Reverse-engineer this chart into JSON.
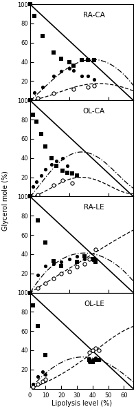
{
  "panels": [
    {
      "title": "RA-CA",
      "TAG_pts_x": [
        0,
        3,
        8,
        15,
        20,
        25,
        28,
        33,
        37,
        41
      ],
      "TAG_pts_y": [
        100,
        88,
        67,
        50,
        43,
        40,
        36,
        42,
        42,
        42
      ],
      "DAG_pts_x": [
        3,
        8,
        15,
        20,
        25,
        28,
        33,
        37,
        41
      ],
      "DAG_pts_y": [
        8,
        14,
        25,
        30,
        33,
        31,
        25,
        25,
        22
      ],
      "MAG_pts_x": [
        0,
        5,
        15,
        28,
        37,
        41
      ],
      "MAG_pts_y": [
        0,
        2,
        7,
        12,
        14,
        15
      ],
      "DAG_curve_x": [
        0,
        5,
        10,
        20,
        30,
        35,
        40,
        50,
        60,
        66
      ],
      "DAG_curve_y": [
        0,
        5,
        15,
        30,
        38,
        42,
        42,
        38,
        28,
        15
      ],
      "MAG_curve_x": [
        0,
        5,
        15,
        25,
        35,
        45,
        55,
        66
      ],
      "MAG_curve_y": [
        0,
        2,
        6,
        12,
        16,
        18,
        15,
        10
      ]
    },
    {
      "title": "OL-CA",
      "TAG_pts_x": [
        0,
        2,
        4,
        7,
        10,
        14,
        17,
        21,
        24,
        27,
        30
      ],
      "TAG_pts_y": [
        100,
        85,
        78,
        65,
        52,
        40,
        32,
        27,
        25,
        24,
        22
      ],
      "DAG_pts_x": [
        2,
        4,
        7,
        10,
        14,
        17,
        21,
        24,
        27
      ],
      "DAG_pts_y": [
        10,
        15,
        22,
        28,
        33,
        37,
        40,
        32,
        25
      ],
      "MAG_pts_x": [
        0,
        5,
        15,
        21,
        27
      ],
      "MAG_pts_y": [
        0,
        2,
        12,
        17,
        14
      ],
      "DAG_curve_x": [
        0,
        5,
        10,
        20,
        30,
        40,
        50,
        60,
        66
      ],
      "DAG_curve_y": [
        0,
        8,
        20,
        38,
        46,
        43,
        32,
        18,
        8
      ],
      "MAG_curve_x": [
        0,
        5,
        15,
        25,
        35,
        45,
        55,
        66
      ],
      "MAG_curve_y": [
        0,
        2,
        10,
        18,
        20,
        15,
        8,
        3
      ]
    },
    {
      "title": "RA-LE",
      "TAG_pts_x": [
        0,
        5,
        10,
        15,
        20,
        30,
        35,
        40,
        42
      ],
      "TAG_pts_y": [
        100,
        75,
        52,
        33,
        28,
        32,
        38,
        35,
        32
      ],
      "DAG_pts_x": [
        5,
        10,
        15,
        20,
        25,
        30,
        35,
        40,
        42
      ],
      "DAG_pts_y": [
        18,
        28,
        30,
        32,
        35,
        38,
        35,
        34,
        35
      ],
      "MAG_pts_x": [
        5,
        10,
        15,
        20,
        25,
        30,
        35,
        38,
        42
      ],
      "MAG_pts_y": [
        5,
        10,
        15,
        20,
        22,
        27,
        30,
        35,
        45
      ],
      "DAG_curve_x": [
        0,
        5,
        10,
        20,
        30,
        40,
        50,
        60,
        66
      ],
      "DAG_curve_y": [
        0,
        10,
        22,
        35,
        40,
        40,
        35,
        22,
        12
      ],
      "MAG_curve_x": [
        0,
        5,
        15,
        25,
        35,
        45,
        55,
        66
      ],
      "MAG_curve_y": [
        0,
        5,
        15,
        25,
        35,
        45,
        55,
        65
      ]
    },
    {
      "title": "OL-LE",
      "TAG_pts_x": [
        0,
        2,
        5,
        10,
        38,
        40,
        42,
        44
      ],
      "TAG_pts_y": [
        100,
        87,
        65,
        35,
        30,
        28,
        30,
        30
      ],
      "DAG_pts_x": [
        2,
        5,
        8,
        10,
        38,
        40,
        42,
        44
      ],
      "DAG_pts_y": [
        5,
        13,
        18,
        15,
        28,
        30,
        32,
        30
      ],
      "MAG_pts_x": [
        0,
        2,
        5,
        8,
        10,
        38,
        40,
        42,
        44
      ],
      "MAG_pts_y": [
        0,
        2,
        5,
        8,
        10,
        38,
        40,
        42,
        40
      ],
      "DAG_curve_x": [
        0,
        5,
        10,
        20,
        30,
        40,
        50,
        60,
        66
      ],
      "DAG_curve_y": [
        0,
        8,
        16,
        28,
        32,
        32,
        26,
        15,
        7
      ],
      "MAG_curve_x": [
        0,
        5,
        10,
        20,
        30,
        40,
        50,
        60,
        66
      ],
      "MAG_curve_y": [
        0,
        3,
        7,
        15,
        25,
        38,
        50,
        60,
        65
      ]
    }
  ],
  "xlim": [
    0,
    66
  ],
  "ylim": [
    0,
    100
  ],
  "xticks": [
    0,
    10,
    20,
    30,
    40,
    50,
    60
  ],
  "yticks": [
    20,
    40,
    60,
    80,
    100
  ],
  "xlabel": "Lipolysis level (%)",
  "ylabel": "Glycerol mole (%)",
  "figsize": [
    1.98,
    6.05
  ],
  "dpi": 100
}
